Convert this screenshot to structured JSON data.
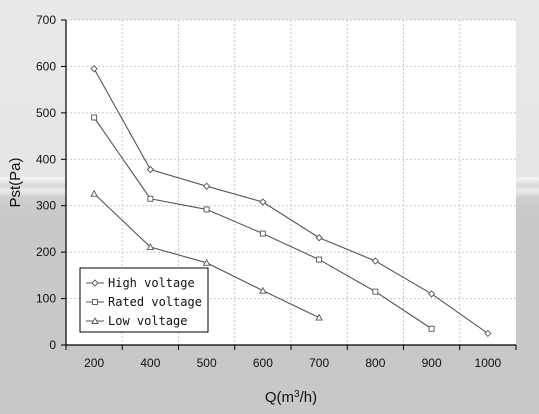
{
  "chart_data": {
    "type": "line",
    "xlabel": "Q(m³/h)",
    "ylabel": "Pst(Pa)",
    "x_tick_labels": [
      "200",
      "400",
      "500",
      "600",
      "700",
      "800",
      "900",
      "1000"
    ],
    "y_ticks": [
      0,
      100,
      200,
      300,
      400,
      500,
      600,
      700
    ],
    "ylim": [
      0,
      700
    ],
    "grid": true,
    "legend_position": "bottom-left",
    "series": [
      {
        "name": "High voltage",
        "marker": "diamond",
        "color": "#555555",
        "points": [
          [
            200,
            595
          ],
          [
            400,
            378
          ],
          [
            500,
            342
          ],
          [
            600,
            308
          ],
          [
            700,
            231
          ],
          [
            800,
            181
          ],
          [
            900,
            110
          ],
          [
            1000,
            25
          ]
        ]
      },
      {
        "name": "Rated voltage",
        "marker": "square",
        "color": "#555555",
        "points": [
          [
            200,
            490
          ],
          [
            400,
            315
          ],
          [
            500,
            292
          ],
          [
            600,
            240
          ],
          [
            700,
            184
          ],
          [
            800,
            115
          ],
          [
            900,
            35
          ]
        ]
      },
      {
        "name": "Low voltage",
        "marker": "triangle",
        "color": "#555555",
        "points": [
          [
            200,
            326
          ],
          [
            400,
            211
          ],
          [
            500,
            177
          ],
          [
            600,
            117
          ],
          [
            700,
            59
          ]
        ]
      }
    ]
  }
}
